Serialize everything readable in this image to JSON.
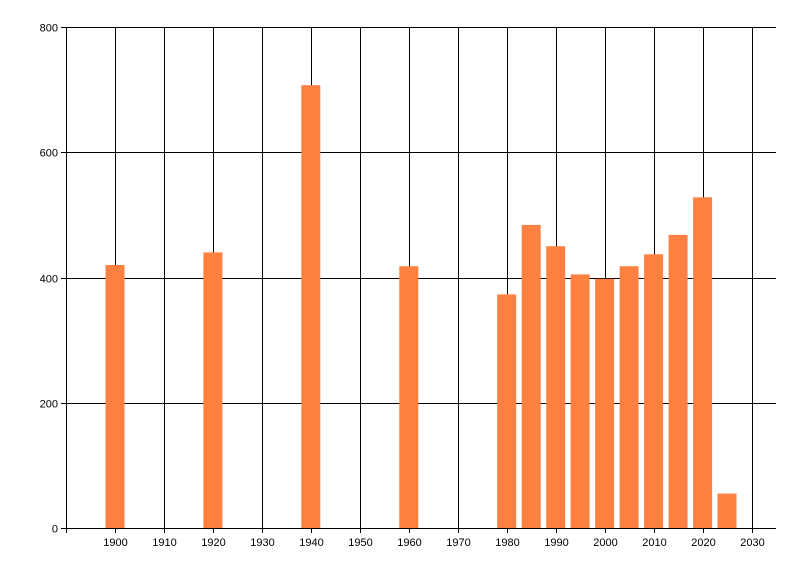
{
  "chart_data": {
    "type": "bar",
    "x": [
      1900,
      1920,
      1940,
      1960,
      1980,
      1985,
      1990,
      1995,
      2000,
      2005,
      2010,
      2015,
      2020,
      2025
    ],
    "values": [
      420,
      440,
      707,
      418,
      373,
      484,
      450,
      405,
      398,
      418,
      437,
      468,
      528,
      55
    ],
    "xlim": [
      1890,
      2035
    ],
    "ylim": [
      0,
      800
    ],
    "xticks": [
      1900,
      1910,
      1920,
      1930,
      1940,
      1950,
      1960,
      1970,
      1980,
      1990,
      2000,
      2010,
      2020,
      2030
    ],
    "yticks": [
      0,
      200,
      400,
      600,
      800
    ],
    "grid": true,
    "title": "",
    "xlabel": "",
    "ylabel": "",
    "bar_color": "#FF8040"
  }
}
